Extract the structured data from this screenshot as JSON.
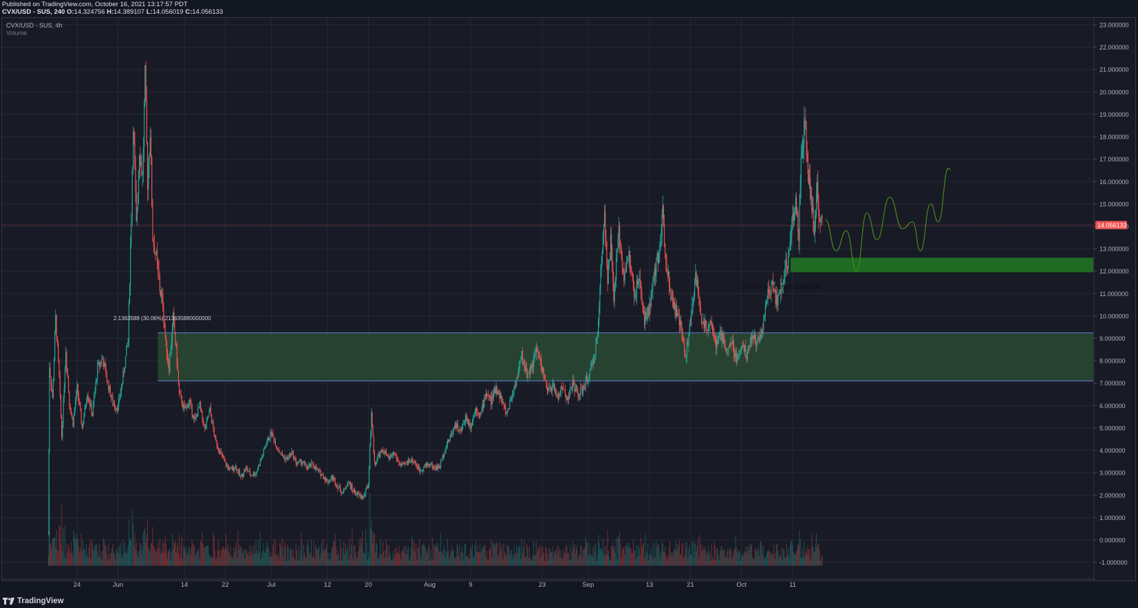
{
  "header": {
    "published": "Published on TradingView.com, October 16, 2021 13:17:57 PDT",
    "symbol_line": "CVX/USD - SUS, 240",
    "o_label": "O:",
    "o_value": "14.324756",
    "h_label": "H:",
    "h_value": "14.389107",
    "l_label": "L:",
    "l_value": "14.056019",
    "c_label": "C:",
    "c_value": "14.056133"
  },
  "legend": {
    "symbol": "CVX/USD - SUS, 4h",
    "volume": "Volume"
  },
  "footer": {
    "brand": "TradingView"
  },
  "colors": {
    "background": "#181a25",
    "grid": "#262a36",
    "up": "#26a69a",
    "down": "#ef5350",
    "zone_fill": "#2a4a32",
    "zone_border": "#5b7fd0",
    "small_zone": "#1f6b23",
    "projection": "#4a8a1e",
    "last_price": "#f05350"
  },
  "chart_data": {
    "type": "candlestick",
    "ylim": [
      -1.8,
      23.3
    ],
    "y_ticks": [
      "23.000000",
      "22.000000",
      "21.000000",
      "20.000000",
      "19.000000",
      "18.000000",
      "17.000000",
      "16.000000",
      "15.000000",
      "14.000000",
      "13.000000",
      "12.000000",
      "11.000000",
      "10.000000",
      "9.000000",
      "8.000000",
      "7.000000",
      "6.000000",
      "5.000000",
      "4.000000",
      "3.000000",
      "2.000000",
      "1.000000",
      "0.000000",
      "-1.000000"
    ],
    "y_tick_values": [
      23,
      22,
      21,
      20,
      19,
      18,
      17,
      16,
      15,
      14,
      13,
      12,
      11,
      10,
      9,
      8,
      7,
      6,
      5,
      4,
      3,
      2,
      1,
      0,
      -1
    ],
    "x_ticks": [
      "24",
      "Jun",
      "14",
      "22",
      "Jul",
      "12",
      "20",
      "Aug",
      "9",
      "23",
      "Sep",
      "13",
      "21",
      "Oct",
      "11"
    ],
    "x_tick_days": [
      -7,
      1,
      14,
      22,
      31,
      42,
      50,
      62,
      70,
      84,
      93,
      105,
      113,
      123,
      133
    ],
    "x_axis_note": "days since 2021-05-31",
    "last_price": 14.056133,
    "last_price_label": "14.056133",
    "series": [
      {
        "day": -12.6,
        "close": 0.3
      },
      {
        "day": -12.4,
        "close": 7.8
      },
      {
        "day": -11.8,
        "close": 6.3
      },
      {
        "day": -11.2,
        "close": 9.9
      },
      {
        "day": -10.5,
        "close": 7.2
      },
      {
        "day": -10,
        "close": 4.6
      },
      {
        "day": -9.2,
        "close": 8.5
      },
      {
        "day": -8.5,
        "close": 6.1
      },
      {
        "day": -7.8,
        "close": 5.2
      },
      {
        "day": -7,
        "close": 6.8
      },
      {
        "day": -6,
        "close": 5.0
      },
      {
        "day": -5,
        "close": 6.6
      },
      {
        "day": -4,
        "close": 5.6
      },
      {
        "day": -3,
        "close": 7.7
      },
      {
        "day": -2,
        "close": 8.1
      },
      {
        "day": -1,
        "close": 7.0
      },
      {
        "day": 0,
        "close": 6.1
      },
      {
        "day": 1,
        "close": 5.9
      },
      {
        "day": 2,
        "close": 7.3
      },
      {
        "day": 3,
        "close": 9.0
      },
      {
        "day": 3.6,
        "close": 14.5
      },
      {
        "day": 4,
        "close": 18.8
      },
      {
        "day": 4.6,
        "close": 14.0
      },
      {
        "day": 5.2,
        "close": 17.5
      },
      {
        "day": 5.8,
        "close": 16.2
      },
      {
        "day": 6.3,
        "close": 20.6
      },
      {
        "day": 6.8,
        "close": 16.0
      },
      {
        "day": 7.3,
        "close": 18.3
      },
      {
        "day": 7.8,
        "close": 13.5
      },
      {
        "day": 8.5,
        "close": 12.6
      },
      {
        "day": 9.2,
        "close": 11.2
      },
      {
        "day": 9.8,
        "close": 10.5
      },
      {
        "day": 10.4,
        "close": 8.7
      },
      {
        "day": 11,
        "close": 7.7
      },
      {
        "day": 11.8,
        "close": 9.9
      },
      {
        "day": 12.4,
        "close": 8.5
      },
      {
        "day": 13,
        "close": 6.5
      },
      {
        "day": 14,
        "close": 5.8
      },
      {
        "day": 15,
        "close": 6.2
      },
      {
        "day": 16,
        "close": 5.3
      },
      {
        "day": 17,
        "close": 6.0
      },
      {
        "day": 18,
        "close": 4.9
      },
      {
        "day": 19,
        "close": 5.8
      },
      {
        "day": 20,
        "close": 4.5
      },
      {
        "day": 21,
        "close": 3.9
      },
      {
        "day": 22,
        "close": 3.4
      },
      {
        "day": 23,
        "close": 3.1
      },
      {
        "day": 24,
        "close": 3.3
      },
      {
        "day": 25,
        "close": 2.8
      },
      {
        "day": 26,
        "close": 3.2
      },
      {
        "day": 27,
        "close": 2.9
      },
      {
        "day": 28,
        "close": 3.0
      },
      {
        "day": 29,
        "close": 3.6
      },
      {
        "day": 30,
        "close": 4.3
      },
      {
        "day": 31,
        "close": 4.8
      },
      {
        "day": 32,
        "close": 4.2
      },
      {
        "day": 33,
        "close": 3.8
      },
      {
        "day": 34,
        "close": 3.6
      },
      {
        "day": 35,
        "close": 3.9
      },
      {
        "day": 36,
        "close": 3.4
      },
      {
        "day": 37,
        "close": 3.5
      },
      {
        "day": 38,
        "close": 3.2
      },
      {
        "day": 39,
        "close": 3.4
      },
      {
        "day": 40,
        "close": 3.1
      },
      {
        "day": 41,
        "close": 2.9
      },
      {
        "day": 42,
        "close": 2.6
      },
      {
        "day": 43,
        "close": 2.8
      },
      {
        "day": 44,
        "close": 2.4
      },
      {
        "day": 45,
        "close": 2.1
      },
      {
        "day": 46,
        "close": 2.6
      },
      {
        "day": 47,
        "close": 2.2
      },
      {
        "day": 48,
        "close": 2.0
      },
      {
        "day": 49,
        "close": 1.9
      },
      {
        "day": 50,
        "close": 2.5
      },
      {
        "day": 50.6,
        "close": 5.7
      },
      {
        "day": 51.2,
        "close": 3.4
      },
      {
        "day": 52,
        "close": 3.8
      },
      {
        "day": 53,
        "close": 4.0
      },
      {
        "day": 54,
        "close": 3.6
      },
      {
        "day": 55,
        "close": 3.9
      },
      {
        "day": 56,
        "close": 3.4
      },
      {
        "day": 57,
        "close": 3.3
      },
      {
        "day": 58,
        "close": 3.6
      },
      {
        "day": 59,
        "close": 3.5
      },
      {
        "day": 60,
        "close": 3.1
      },
      {
        "day": 61,
        "close": 3.3
      },
      {
        "day": 62,
        "close": 3.4
      },
      {
        "day": 63,
        "close": 3.2
      },
      {
        "day": 64,
        "close": 3.3
      },
      {
        "day": 65,
        "close": 4.1
      },
      {
        "day": 66,
        "close": 4.6
      },
      {
        "day": 67,
        "close": 5.2
      },
      {
        "day": 68,
        "close": 4.8
      },
      {
        "day": 69,
        "close": 5.5
      },
      {
        "day": 70,
        "close": 5.1
      },
      {
        "day": 71,
        "close": 5.9
      },
      {
        "day": 72,
        "close": 5.6
      },
      {
        "day": 73,
        "close": 6.6
      },
      {
        "day": 74,
        "close": 6.2
      },
      {
        "day": 75,
        "close": 6.8
      },
      {
        "day": 76,
        "close": 6.3
      },
      {
        "day": 77,
        "close": 5.6
      },
      {
        "day": 78,
        "close": 6.4
      },
      {
        "day": 79,
        "close": 7.2
      },
      {
        "day": 80,
        "close": 8.2
      },
      {
        "day": 81,
        "close": 7.4
      },
      {
        "day": 82,
        "close": 7.8
      },
      {
        "day": 83,
        "close": 8.5
      },
      {
        "day": 84,
        "close": 7.6
      },
      {
        "day": 85,
        "close": 6.6
      },
      {
        "day": 86,
        "close": 6.9
      },
      {
        "day": 87,
        "close": 6.4
      },
      {
        "day": 88,
        "close": 6.8
      },
      {
        "day": 89,
        "close": 6.3
      },
      {
        "day": 90,
        "close": 7.0
      },
      {
        "day": 91,
        "close": 6.5
      },
      {
        "day": 92,
        "close": 6.7
      },
      {
        "day": 93,
        "close": 7.3
      },
      {
        "day": 94,
        "close": 7.9
      },
      {
        "day": 95,
        "close": 9.6
      },
      {
        "day": 95.6,
        "close": 12.6
      },
      {
        "day": 96.2,
        "close": 14.8
      },
      {
        "day": 96.8,
        "close": 11.4
      },
      {
        "day": 97.4,
        "close": 13.3
      },
      {
        "day": 98,
        "close": 10.8
      },
      {
        "day": 99,
        "close": 13.7
      },
      {
        "day": 100,
        "close": 11.8
      },
      {
        "day": 101,
        "close": 12.7
      },
      {
        "day": 102,
        "close": 10.9
      },
      {
        "day": 103,
        "close": 11.6
      },
      {
        "day": 104,
        "close": 9.8
      },
      {
        "day": 105,
        "close": 10.4
      },
      {
        "day": 106,
        "close": 11.8
      },
      {
        "day": 107,
        "close": 13.2
      },
      {
        "day": 107.6,
        "close": 14.6
      },
      {
        "day": 108.2,
        "close": 12.6
      },
      {
        "day": 109,
        "close": 11.2
      },
      {
        "day": 110,
        "close": 10.3
      },
      {
        "day": 111,
        "close": 9.6
      },
      {
        "day": 112,
        "close": 8.2
      },
      {
        "day": 113,
        "close": 9.6
      },
      {
        "day": 114,
        "close": 11.9
      },
      {
        "day": 115,
        "close": 10.1
      },
      {
        "day": 116,
        "close": 9.4
      },
      {
        "day": 117,
        "close": 9.9
      },
      {
        "day": 118,
        "close": 8.6
      },
      {
        "day": 119,
        "close": 9.2
      },
      {
        "day": 120,
        "close": 8.4
      },
      {
        "day": 121,
        "close": 8.9
      },
      {
        "day": 122,
        "close": 8.1
      },
      {
        "day": 123,
        "close": 8.7
      },
      {
        "day": 124,
        "close": 8.3
      },
      {
        "day": 125,
        "close": 9.1
      },
      {
        "day": 126,
        "close": 8.8
      },
      {
        "day": 127,
        "close": 9.3
      },
      {
        "day": 128,
        "close": 10.9
      },
      {
        "day": 129,
        "close": 11.3
      },
      {
        "day": 130,
        "close": 10.6
      },
      {
        "day": 131,
        "close": 11.6
      },
      {
        "day": 132,
        "close": 12.4
      },
      {
        "day": 133,
        "close": 14.3
      },
      {
        "day": 133.6,
        "close": 15.0
      },
      {
        "day": 134.2,
        "close": 13.6
      },
      {
        "day": 134.8,
        "close": 17.6
      },
      {
        "day": 135.4,
        "close": 18.4
      },
      {
        "day": 136,
        "close": 16.6
      },
      {
        "day": 136.6,
        "close": 15.2
      },
      {
        "day": 137.2,
        "close": 13.8
      },
      {
        "day": 137.8,
        "close": 15.6
      },
      {
        "day": 138.4,
        "close": 14.1
      },
      {
        "day": 138.8,
        "close": 14.06
      }
    ],
    "annotations": {
      "label_left": "2.1363588 (30.06%) 213635880000000",
      "label_right": "0.65979 (5.24) 65977009880146"
    },
    "zones": [
      {
        "from_day": 8.8,
        "to_day": 189,
        "low": 7.1,
        "high": 9.25
      },
      {
        "from_day": 132.6,
        "to_day": 189,
        "low": 11.95,
        "high": 12.6
      }
    ],
    "projection": [
      [
        139.4,
        14.3
      ],
      [
        141.5,
        12.9
      ],
      [
        143.5,
        13.8
      ],
      [
        145.5,
        12.0
      ],
      [
        147.5,
        14.6
      ],
      [
        149.5,
        13.4
      ],
      [
        152,
        15.3
      ],
      [
        154.5,
        13.9
      ],
      [
        156.5,
        14.2
      ],
      [
        158,
        12.9
      ],
      [
        160,
        15.0
      ],
      [
        161.5,
        14.2
      ],
      [
        163.5,
        16.6
      ]
    ]
  }
}
